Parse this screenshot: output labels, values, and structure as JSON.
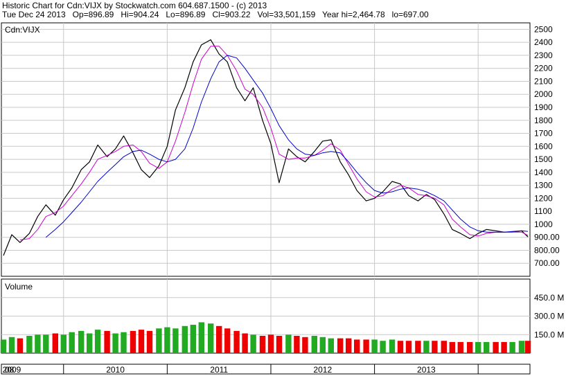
{
  "header": {
    "line1": "Historic Chart for Cdn:VIJX by Stockwatch.com 604.687.1500 - (c) 2013",
    "line2": "Tue Dec 24 2013   Op=896.89   Hi=904.24   Lo=896.89   Cl=903.22   Vol=33,501,159   Year hi=2,464.78   lo=697.00"
  },
  "colors": {
    "price": "#000000",
    "ma_short": "#cc00cc",
    "ma_long": "#0000cc",
    "volume_up": "#22aa22",
    "volume_down": "#ee0000",
    "grid": "#c8c8c8"
  },
  "chart_data": [
    {
      "type": "line",
      "title": "Cdn:VIJX",
      "grid": true,
      "ylim": [
        600,
        2550
      ],
      "y_ticks": [
        "2500",
        "2400",
        "2300",
        "2200",
        "2100",
        "2000",
        "1900",
        "1800",
        "1700",
        "1600",
        "1500",
        "1400",
        "1300",
        "1200",
        "1100",
        "1000",
        "900.00",
        "800.00",
        "700.00"
      ],
      "x_ticks": [
        "08",
        "2009",
        "2010",
        "2011",
        "2012",
        "2013"
      ],
      "x": [
        2008.92,
        2009.0,
        2009.08,
        2009.17,
        2009.25,
        2009.33,
        2009.42,
        2009.5,
        2009.58,
        2009.67,
        2009.75,
        2009.83,
        2009.92,
        2010.0,
        2010.08,
        2010.17,
        2010.25,
        2010.33,
        2010.42,
        2010.5,
        2010.58,
        2010.67,
        2010.75,
        2010.83,
        2010.92,
        2011.0,
        2011.08,
        2011.17,
        2011.25,
        2011.33,
        2011.42,
        2011.5,
        2011.58,
        2011.67,
        2011.75,
        2011.83,
        2011.92,
        2012.0,
        2012.08,
        2012.17,
        2012.25,
        2012.33,
        2012.42,
        2012.5,
        2012.58,
        2012.67,
        2012.75,
        2012.83,
        2012.92,
        2013.0,
        2013.08,
        2013.17,
        2013.25,
        2013.33,
        2013.42,
        2013.5,
        2013.58,
        2013.67,
        2013.75,
        2013.83,
        2013.92,
        2013.98
      ],
      "series": [
        {
          "role": "price",
          "values": [
            760,
            920,
            860,
            930,
            1060,
            1150,
            1070,
            1190,
            1280,
            1420,
            1480,
            1610,
            1520,
            1580,
            1680,
            1550,
            1420,
            1360,
            1450,
            1600,
            1880,
            2050,
            2250,
            2380,
            2420,
            2310,
            2250,
            2050,
            1950,
            2050,
            1800,
            1620,
            1320,
            1580,
            1520,
            1480,
            1560,
            1640,
            1650,
            1480,
            1380,
            1260,
            1180,
            1200,
            1250,
            1330,
            1310,
            1220,
            1180,
            1230,
            1190,
            1080,
            960,
            930,
            890,
            930,
            960,
            950,
            940,
            940,
            950,
            903
          ]
        },
        {
          "role": "ma_short",
          "values": [
            null,
            null,
            880,
            890,
            960,
            1060,
            1090,
            1140,
            1220,
            1310,
            1400,
            1500,
            1530,
            1560,
            1600,
            1610,
            1560,
            1470,
            1430,
            1480,
            1640,
            1860,
            2080,
            2270,
            2370,
            2370,
            2300,
            2180,
            2040,
            2000,
            1900,
            1740,
            1540,
            1500,
            1510,
            1510,
            1530,
            1570,
            1620,
            1570,
            1460,
            1350,
            1250,
            1210,
            1220,
            1270,
            1300,
            1280,
            1230,
            1220,
            1200,
            1150,
            1040,
            980,
            920,
            910,
            930,
            940,
            940,
            940,
            940,
            915
          ]
        },
        {
          "role": "ma_long",
          "values": [
            null,
            null,
            null,
            null,
            null,
            900,
            960,
            1020,
            1090,
            1170,
            1250,
            1330,
            1400,
            1460,
            1520,
            1560,
            1570,
            1540,
            1500,
            1480,
            1500,
            1580,
            1740,
            1940,
            2120,
            2250,
            2300,
            2280,
            2200,
            2110,
            2010,
            1890,
            1760,
            1650,
            1580,
            1540,
            1530,
            1550,
            1560,
            1550,
            1480,
            1400,
            1320,
            1260,
            1240,
            1250,
            1270,
            1280,
            1270,
            1250,
            1220,
            1180,
            1110,
            1040,
            980,
            950,
            940,
            940,
            940,
            945,
            950,
            945
          ]
        }
      ]
    },
    {
      "type": "bar",
      "title": "Volume",
      "grid": true,
      "ylim": [
        0,
        600
      ],
      "y_unit": "M",
      "y_ticks": [
        "450.0 M",
        "300.0 M",
        "150.0 M"
      ],
      "x": [
        2008.92,
        2009.0,
        2009.08,
        2009.17,
        2009.25,
        2009.33,
        2009.42,
        2009.5,
        2009.58,
        2009.67,
        2009.75,
        2009.83,
        2009.92,
        2010.0,
        2010.08,
        2010.17,
        2010.25,
        2010.33,
        2010.42,
        2010.5,
        2010.58,
        2010.67,
        2010.75,
        2010.83,
        2010.92,
        2011.0,
        2011.08,
        2011.17,
        2011.25,
        2011.33,
        2011.42,
        2011.5,
        2011.58,
        2011.67,
        2011.75,
        2011.83,
        2011.92,
        2012.0,
        2012.08,
        2012.17,
        2012.25,
        2012.33,
        2012.42,
        2012.5,
        2012.58,
        2012.67,
        2012.75,
        2012.83,
        2012.92,
        2013.0,
        2013.08,
        2013.17,
        2013.25,
        2013.33,
        2013.42,
        2013.5,
        2013.58,
        2013.67,
        2013.75,
        2013.83,
        2013.92,
        2013.98
      ],
      "values": [
        110,
        130,
        120,
        140,
        150,
        150,
        160,
        150,
        170,
        180,
        160,
        190,
        180,
        160,
        170,
        180,
        190,
        180,
        200,
        210,
        200,
        220,
        230,
        250,
        240,
        220,
        200,
        180,
        160,
        150,
        140,
        150,
        140,
        150,
        140,
        130,
        140,
        130,
        120,
        120,
        120,
        110,
        110,
        110,
        100,
        110,
        100,
        100,
        100,
        100,
        100,
        100,
        90,
        90,
        90,
        90,
        90,
        90,
        90,
        90,
        100,
        100
      ]
    }
  ]
}
